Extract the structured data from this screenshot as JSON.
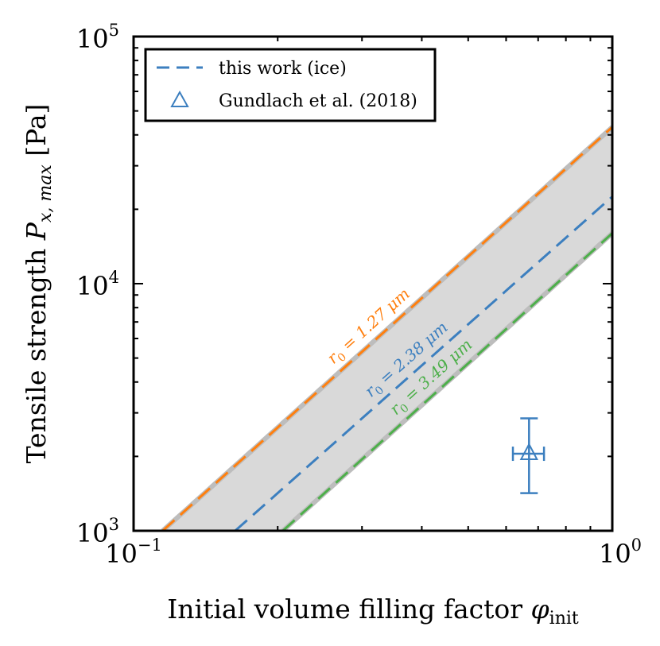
{
  "chart_data": {
    "type": "line",
    "xscale": "log",
    "yscale": "log",
    "xlim": [
      0.1,
      1.0
    ],
    "ylim": [
      1000,
      100000
    ],
    "xlabel_text": "Initial volume filling factor ",
    "xlabel_symbol": "φ",
    "xlabel_sub": "init",
    "ylabel_text": "Tensile strength ",
    "ylabel_symbol": "P",
    "ylabel_sub": "x, max",
    "ylabel_unit": " [Pa]",
    "xticks": [
      {
        "value": 0.1,
        "base": "10",
        "exp": "−1"
      },
      {
        "value": 1.0,
        "base": "10",
        "exp": "0"
      }
    ],
    "yticks": [
      {
        "value": 1000,
        "base": "10",
        "exp": "3"
      },
      {
        "value": 10000,
        "base": "10",
        "exp": "4"
      },
      {
        "value": 100000,
        "base": "10",
        "exp": "5"
      }
    ],
    "band": {
      "upper": {
        "x": [
          0.115,
          1.0
        ],
        "y": [
          1000,
          43000
        ]
      },
      "lower": {
        "x": [
          0.205,
          1.0
        ],
        "y": [
          1000,
          16000
        ]
      },
      "color": "#d9d9d9"
    },
    "series": [
      {
        "name": "r0 = 1.27 μm",
        "color": "#ff7f0e",
        "x": [
          0.115,
          1.0
        ],
        "y": [
          1000,
          43000
        ],
        "label_sym": "r",
        "label_sub": "0",
        "label_val": " = 1.27 μm",
        "label_at": 0.48
      },
      {
        "name": "this work (ice)",
        "color": "#3c7fbf",
        "x": [
          0.163,
          1.0
        ],
        "y": [
          1000,
          22500
        ],
        "label_sym": "r",
        "label_sub": "0",
        "label_val": " = 2.38 μm",
        "label_at": 0.48
      },
      {
        "name": "r0 = 3.49 μm",
        "color": "#4daf4a",
        "x": [
          0.205,
          1.0
        ],
        "y": [
          1000,
          16000
        ],
        "label_sym": "r",
        "label_sub": "0",
        "label_val": " = 3.49 μm",
        "label_at": 0.48
      }
    ],
    "points": [
      {
        "name": "Gundlach et al. (2018)",
        "x": 0.67,
        "y": 2050,
        "xerr": [
          0.62,
          0.72
        ],
        "yerr": [
          1420,
          2850
        ],
        "color": "#3c7fbf",
        "marker": "triangle"
      }
    ],
    "legend": {
      "position": "top-left",
      "entries": [
        {
          "label": "this work (ice)",
          "kind": "dashed",
          "color": "#3c7fbf"
        },
        {
          "label": "Gundlach et al. (2018)",
          "kind": "triangle",
          "color": "#3c7fbf"
        }
      ]
    }
  }
}
